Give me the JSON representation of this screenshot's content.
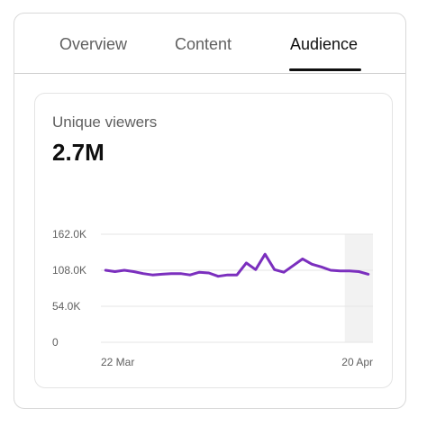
{
  "tabs": [
    {
      "label": "Overview",
      "active": false
    },
    {
      "label": "Content",
      "active": false
    },
    {
      "label": "Audience",
      "active": true
    }
  ],
  "metric": {
    "label": "Unique viewers",
    "value": "2.7M"
  },
  "colors": {
    "line": "#7b2fbe",
    "gridline": "#e5e5e5",
    "highlight": "#f2f2f2"
  },
  "chart_data": {
    "type": "line",
    "y_tick_labels": [
      "162.0K",
      "108.0K",
      "54.0K",
      "0"
    ],
    "y_ticks": [
      162000,
      108000,
      54000,
      0
    ],
    "ylim": [
      0,
      162000
    ],
    "x_tick_labels": [
      "22 Mar",
      "20 Apr"
    ],
    "grid": true,
    "highlight_last_days": 3,
    "series": [
      {
        "values": [
          108000,
          106000,
          108000,
          106000,
          103000,
          101000,
          102000,
          103000,
          103000,
          101000,
          105000,
          104000,
          99000,
          101000,
          101000,
          119000,
          109000,
          132000,
          109000,
          105000,
          115000,
          125000,
          117000,
          113000,
          108000,
          107000,
          107000,
          106000,
          102000
        ]
      }
    ]
  }
}
